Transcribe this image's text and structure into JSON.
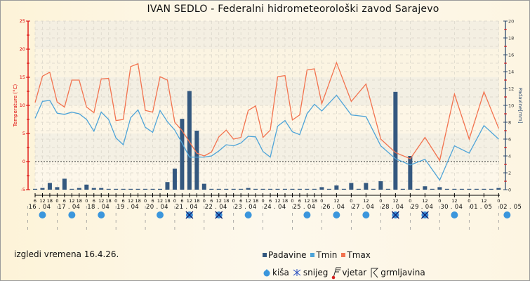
{
  "header": {
    "title": "IVAN SEDLO - Federalni hidrometeorološki zavod Sarajevo"
  },
  "footer": {
    "note": "izgledi vremena 16.4.26."
  },
  "colors": {
    "padavine": "#34587f",
    "tmin": "#4ea4d8",
    "tmax": "#f2734f",
    "left_axis": "#dd0000",
    "right_axis": "#2e4a6e",
    "rain": "#3b96dc",
    "snow": "#1e3aa0"
  },
  "legend": {
    "series": [
      {
        "label": "Padavine"
      },
      {
        "label": "Tmin"
      },
      {
        "label": "Tmax"
      }
    ],
    "symbols": [
      {
        "label": "kiša",
        "icon": "rain-drop-icon"
      },
      {
        "label": "snijeg",
        "icon": "snowflake-icon"
      },
      {
        "label": "vjetar",
        "icon": "wind-barb-icon"
      },
      {
        "label": "grmljavina",
        "icon": "thunder-icon"
      }
    ]
  },
  "chart_data": {
    "type": "line",
    "title": "IVAN SEDLO - Federalni hidrometeorološki zavod Sarajevo",
    "ylabel": "Temperature (°C)",
    "y2label": "Padavine[mm]",
    "ylim": [
      -5,
      25
    ],
    "y2lim": [
      0,
      20
    ],
    "yticks": [
      "-5",
      "0",
      "5",
      "10",
      "15",
      "20",
      "25"
    ],
    "y2ticks": [
      "0",
      "2",
      "4",
      "6",
      "8",
      "10",
      "12",
      "14",
      "16",
      "18",
      "20"
    ],
    "grid": true,
    "legend_position": "bottom",
    "days": [
      {
        "label": "16 . 04",
        "hours": [
          "6",
          "12",
          "18"
        ]
      },
      {
        "label": "17 . 04",
        "hours": [
          "0",
          "6",
          "12",
          "18"
        ]
      },
      {
        "label": "18 . 04",
        "hours": [
          "0",
          "6",
          "12",
          "18"
        ]
      },
      {
        "label": "19 . 04",
        "hours": [
          "0",
          "6",
          "12",
          "18"
        ]
      },
      {
        "label": "20 . 04",
        "hours": [
          "0",
          "6",
          "12",
          "18"
        ]
      },
      {
        "label": "21 . 04",
        "hours": [
          "0",
          "6",
          "12",
          "18"
        ]
      },
      {
        "label": "22 . 04",
        "hours": [
          "0",
          "6",
          "12",
          "18"
        ]
      },
      {
        "label": "23 . 04",
        "hours": [
          "0",
          "6",
          "12",
          "18"
        ]
      },
      {
        "label": "24 . 04",
        "hours": [
          "0",
          "6",
          "12",
          "18"
        ]
      },
      {
        "label": "25 . 04",
        "hours": [
          "0",
          "6",
          "12",
          "18"
        ]
      },
      {
        "label": "26 . 04",
        "hours": [
          "0",
          "12"
        ]
      },
      {
        "label": "27 . 04",
        "hours": [
          "0",
          "12"
        ]
      },
      {
        "label": "28 . 04",
        "hours": [
          "0",
          "12"
        ]
      },
      {
        "label": "29 . 04",
        "hours": [
          "0",
          "12"
        ]
      },
      {
        "label": "30 . 04",
        "hours": [
          "0",
          "12"
        ]
      },
      {
        "label": "01 . 05",
        "hours": [
          "0",
          "12"
        ]
      },
      {
        "label": "02 . 05",
        "hours": [
          "0"
        ]
      }
    ],
    "series": [
      {
        "name": "Tmax",
        "values": [
          10.5,
          15.2,
          15.9,
          10.6,
          9.7,
          14.5,
          14.5,
          9.7,
          8.7,
          14.7,
          14.8,
          7.3,
          7.5,
          16.9,
          17.4,
          9.1,
          8.8,
          15.1,
          14.5,
          7.0,
          5.5,
          3.5,
          1.5,
          1.0,
          1.7,
          4.4,
          5.6,
          4.0,
          4.3,
          9.1,
          9.9,
          4.3,
          5.6,
          15.1,
          15.3,
          7.4,
          8.3,
          16.3,
          16.5,
          10.3,
          17.6,
          10.7,
          13.8,
          4.0,
          1.6,
          0.5,
          4.3,
          0.2,
          12.0,
          4.0,
          12.4,
          5.9
        ]
      },
      {
        "name": "Tmin",
        "values": [
          7.7,
          10.7,
          10.9,
          8.6,
          8.4,
          8.8,
          8.5,
          7.5,
          5.4,
          8.8,
          7.5,
          4.2,
          3.0,
          7.8,
          9.2,
          6.1,
          5.2,
          9.1,
          7.1,
          5.6,
          3.3,
          0.8,
          0.8,
          0.8,
          1.0,
          1.9,
          3.0,
          2.8,
          3.3,
          4.5,
          4.4,
          1.8,
          0.8,
          6.3,
          7.3,
          5.3,
          4.8,
          8.5,
          10.2,
          9.0,
          11.8,
          8.3,
          8.0,
          2.8,
          0.5,
          -0.6,
          0.4,
          -3.3,
          2.8,
          1.5,
          6.4,
          4.0
        ]
      },
      {
        "name": "Padavine",
        "values": [
          0.1,
          0.2,
          0.8,
          0.3,
          1.3,
          0.1,
          0.2,
          0.6,
          0.2,
          0.2,
          0,
          0,
          0,
          0,
          0,
          0,
          0,
          0,
          0.9,
          2.5,
          8.4,
          11.7,
          7.0,
          0.7,
          0,
          0.1,
          0,
          0.1,
          0,
          0.2,
          0,
          0,
          0,
          0,
          0,
          0,
          0,
          0.1,
          0,
          0.3,
          0.5,
          0.8,
          0.8,
          1.0,
          11.6,
          4.0,
          0.4,
          0.3,
          0,
          0,
          0,
          0.2
        ]
      }
    ],
    "weather": [
      {
        "day": "16 . 04",
        "type": "rain"
      },
      {
        "day": "17 . 04",
        "type": "rain"
      },
      {
        "day": "18 . 04",
        "type": "rain"
      },
      {
        "day": "19 . 04",
        "type": "none"
      },
      {
        "day": "20 . 04",
        "type": "rain"
      },
      {
        "day": "21 . 04",
        "type": "snow"
      },
      {
        "day": "22 . 04",
        "type": "snow"
      },
      {
        "day": "23 . 04",
        "type": "rain"
      },
      {
        "day": "24 . 04",
        "type": "none"
      },
      {
        "day": "25 . 04",
        "type": "rain"
      },
      {
        "day": "26 . 04",
        "type": "rain"
      },
      {
        "day": "27 . 04",
        "type": "rain"
      },
      {
        "day": "28 . 04",
        "type": "snow"
      },
      {
        "day": "29 . 04",
        "type": "snow"
      },
      {
        "day": "30 . 04",
        "type": "rain"
      },
      {
        "day": "01 . 05",
        "type": "none"
      },
      {
        "day": "02 . 05",
        "type": "rain"
      }
    ]
  }
}
